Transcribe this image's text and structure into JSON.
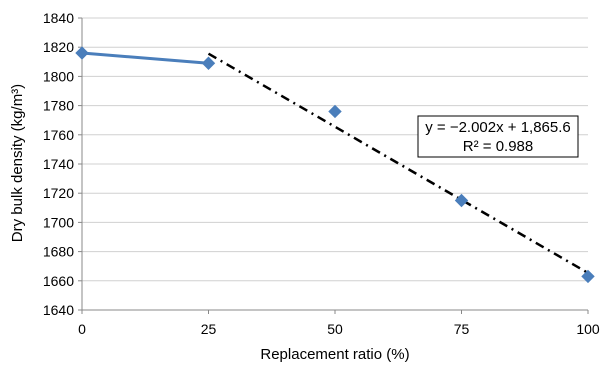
{
  "chart_data": {
    "type": "scatter",
    "xlabel": "Replacement ratio (%)",
    "ylabel": "Dry bulk density (kg/m³)",
    "xlim": [
      0,
      100
    ],
    "ylim": [
      1640,
      1840
    ],
    "x_ticks": [
      0,
      25,
      50,
      75,
      100
    ],
    "y_ticks": [
      1640,
      1660,
      1680,
      1700,
      1720,
      1740,
      1760,
      1780,
      1800,
      1820,
      1840
    ],
    "grid": "horizontal",
    "series": [
      {
        "type": "scatter",
        "marker": "diamond",
        "color": "#4a7ebb",
        "x": [
          0,
          25,
          50,
          75,
          100
        ],
        "y": [
          1816,
          1809,
          1776,
          1715,
          1663
        ]
      }
    ],
    "lines": [
      {
        "style": "solid",
        "color": "#4a7ebb",
        "x": [
          0,
          25
        ],
        "y": [
          1816,
          1809
        ]
      },
      {
        "style": "dash-dot",
        "color": "#000000",
        "x": [
          25,
          100
        ],
        "y": [
          1815.55,
          1665.4
        ]
      }
    ],
    "annotation": {
      "equation": "y = −2.002x + 1,865.6",
      "r_squared": "R² = 0.988"
    }
  }
}
